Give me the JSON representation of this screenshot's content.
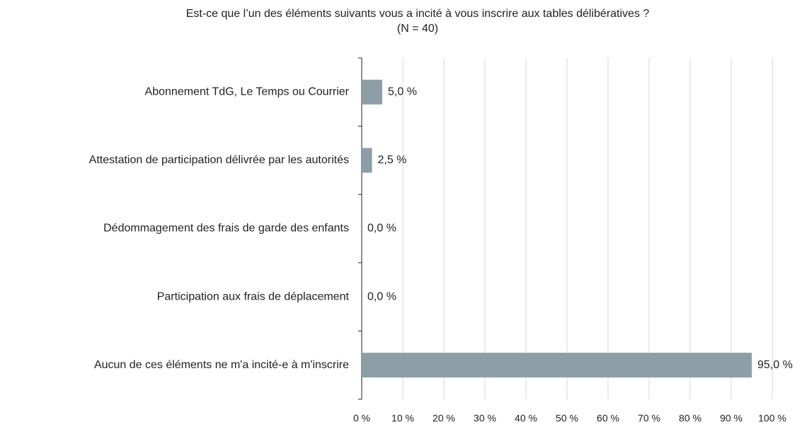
{
  "chart_data": {
    "type": "barh",
    "title": "Est-ce que l’un des éléments suivants vous a incité à vous inscrire aux tables délibératives ?",
    "subtitle": "(N = 40)",
    "categories": [
      "Abonnement TdG, Le Temps ou Courrier",
      "Attestation de participation délivrée par les autorités",
      "Dédommagement des frais de garde des enfants",
      "Participation aux frais de déplacement",
      "Aucun de ces éléments ne m'a incité-e à m'inscrire"
    ],
    "values": [
      5.0,
      2.5,
      0.0,
      0.0,
      95.0
    ],
    "value_labels": [
      "5,0 %",
      "2,5 %",
      "0,0 %",
      "0,0 %",
      "95,0 %"
    ],
    "color": "#8c9ea8",
    "xlim": [
      0,
      100
    ],
    "xticks": [
      {
        "value": 0,
        "label": "0 %"
      },
      {
        "value": 10,
        "label": "10 %"
      },
      {
        "value": 20,
        "label": "20 %"
      },
      {
        "value": 30,
        "label": "30 %"
      },
      {
        "value": 40,
        "label": "40 %"
      },
      {
        "value": 50,
        "label": "50 %"
      },
      {
        "value": 60,
        "label": "60 %"
      },
      {
        "value": 70,
        "label": "70 %"
      },
      {
        "value": 80,
        "label": "80 %"
      },
      {
        "value": 90,
        "label": "90 %"
      },
      {
        "value": 100,
        "label": "100 %"
      }
    ],
    "grid": true
  }
}
